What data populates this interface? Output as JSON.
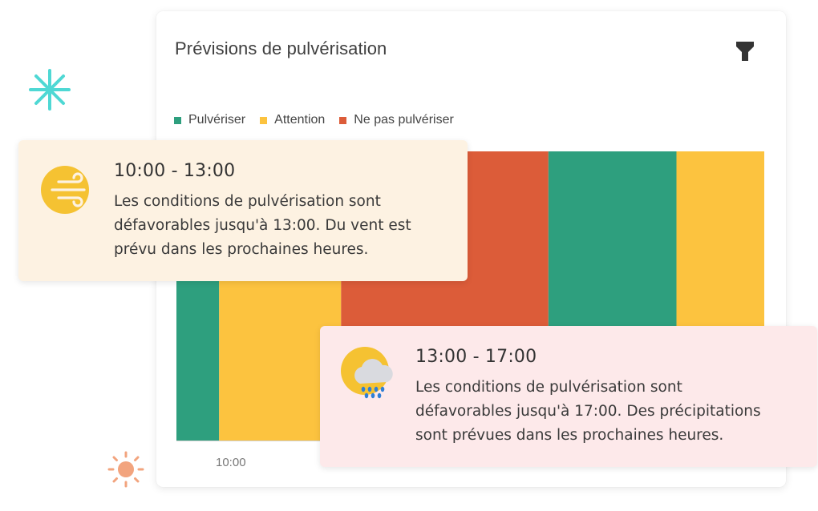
{
  "card": {
    "title": "Prévisions de pulvérisation"
  },
  "icons": {
    "filter": "filter-icon",
    "decor_asterisk": "asterisk-icon",
    "decor_sun": "sun-icon",
    "wind": "sun-wind-icon",
    "rain": "sun-rain-cloud-icon"
  },
  "colors": {
    "pulveriser": "#2e9f7e",
    "attention": "#fcc33f",
    "ne_pas": "#dc5c39",
    "asterisk": "#4fd8d4",
    "sun_deco": "#f2a47e"
  },
  "legend": [
    {
      "label": "Pulvériser",
      "color": "#2e9f7e"
    },
    {
      "label": "Attention",
      "color": "#fcc33f"
    },
    {
      "label": "Ne pas pulvériser",
      "color": "#dc5c39"
    }
  ],
  "chart_data": {
    "type": "bar",
    "segments": [
      {
        "status": "Pulvériser",
        "start": 9.0,
        "end": 9.35
      },
      {
        "status": "Attention",
        "start": 9.35,
        "end": 10.35
      },
      {
        "status": "Ne pas pulvériser",
        "start": 10.35,
        "end": 12.05
      },
      {
        "status": "Pulvériser",
        "start": 12.05,
        "end": 13.1
      },
      {
        "status": "Attention",
        "start": 13.1,
        "end": 13.82
      }
    ],
    "x_range": [
      9.0,
      13.82
    ],
    "x_ticks": [
      {
        "value": 9.3,
        "label": "10:00"
      }
    ],
    "legend": [
      "Pulvériser",
      "Attention",
      "Ne pas pulvériser"
    ]
  },
  "tooltips": [
    {
      "time": "10:00 - 13:00",
      "lines": [
        "Les conditions de pulvérisation sont",
        "défavorables jusqu'à 13:00. Du vent est",
        "prévu dans les prochaines heures."
      ]
    },
    {
      "time": "13:00 - 17:00",
      "lines": [
        "Les conditions de pulvérisation sont",
        "défavorables jusqu'à 17:00. Des précipitations",
        "sont prévues dans les prochaines heures."
      ]
    }
  ]
}
